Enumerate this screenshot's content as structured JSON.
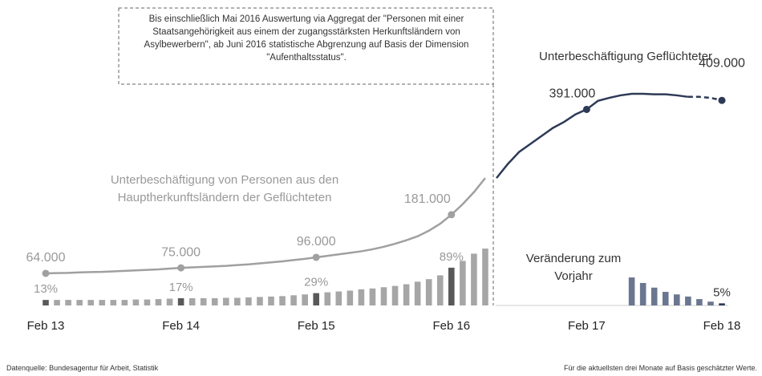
{
  "chart_data": {
    "type": "line_bar",
    "annotation": "Bis einschließlich Mai 2016 Auswertung via Aggregat der \"Personen mit einer Staatsangehörigkeit aus einem der zugangsstärksten Herkunftsländern von Asylbewerbern\", ab Juni 2016 statistische Abgrenzung auf Basis der Dimension \"Aufenthaltsstatus\".",
    "categories": [
      "Feb 13",
      null,
      null,
      null,
      null,
      null,
      null,
      null,
      null,
      null,
      null,
      null,
      "Feb 14",
      null,
      null,
      null,
      null,
      null,
      null,
      null,
      null,
      null,
      null,
      null,
      "Feb 15",
      null,
      null,
      null,
      null,
      null,
      null,
      null,
      null,
      null,
      null,
      null,
      "Feb 16",
      null,
      null,
      null,
      null,
      null,
      null,
      null,
      null,
      null,
      null,
      null,
      "Feb 17",
      null,
      null,
      null,
      null,
      null,
      null,
      null,
      null,
      null,
      null,
      null,
      "Feb 18"
    ],
    "ylim": [
      0,
      550000
    ],
    "y2lim": [
      0,
      650
    ],
    "series": [
      {
        "name": "Unterbeschäftigung von Personen aus den Hauptherkunftsländern der Geflüchteten",
        "color": "#a0a0a0",
        "values": [
          64000,
          64500,
          65000,
          66000,
          66500,
          67000,
          68000,
          69000,
          70000,
          71000,
          72000,
          73500,
          75000,
          76000,
          77000,
          78000,
          79000,
          80500,
          82000,
          84000,
          86000,
          88000,
          90500,
          93000,
          96000,
          99000,
          102000,
          105000,
          108000,
          112000,
          117000,
          123000,
          130000,
          138000,
          149000,
          163000,
          181000,
          202000,
          226000,
          254000,
          null,
          null,
          null,
          null,
          null,
          null,
          null,
          null,
          null,
          null,
          null,
          null,
          null,
          null,
          null,
          null,
          null,
          null,
          null,
          null,
          null
        ],
        "value_labels": [
          "64.000",
          null,
          null,
          null,
          null,
          null,
          null,
          null,
          null,
          null,
          null,
          null,
          "75.000",
          null,
          null,
          null,
          null,
          null,
          null,
          null,
          null,
          null,
          null,
          null,
          "96.000",
          null,
          null,
          null,
          null,
          null,
          null,
          null,
          null,
          null,
          null,
          null,
          "181.000",
          null,
          null,
          null,
          null,
          null,
          null,
          null,
          null,
          null,
          null,
          null,
          null,
          null,
          null,
          null,
          null,
          null,
          null,
          null,
          null,
          null,
          null,
          null,
          null
        ]
      },
      {
        "name": "Unterbeschäftigung Geflüchteter",
        "color": "#2d3a56",
        "dashed_last": 3,
        "values": [
          null,
          null,
          null,
          null,
          null,
          null,
          null,
          null,
          null,
          null,
          null,
          null,
          null,
          null,
          null,
          null,
          null,
          null,
          null,
          null,
          null,
          null,
          null,
          null,
          null,
          null,
          null,
          null,
          null,
          null,
          null,
          null,
          null,
          null,
          null,
          null,
          null,
          null,
          null,
          null,
          254000,
          282000,
          306000,
          322000,
          338000,
          354000,
          366000,
          381000,
          391000,
          408000,
          414000,
          419000,
          422000,
          422000,
          421000,
          421000,
          419000,
          416000,
          416000,
          414000,
          409000
        ],
        "value_labels": [
          null,
          null,
          null,
          null,
          null,
          null,
          null,
          null,
          null,
          null,
          null,
          null,
          null,
          null,
          null,
          null,
          null,
          null,
          null,
          null,
          null,
          null,
          null,
          null,
          null,
          null,
          null,
          null,
          null,
          null,
          null,
          null,
          null,
          null,
          null,
          null,
          null,
          null,
          null,
          null,
          null,
          null,
          null,
          null,
          null,
          null,
          null,
          null,
          "391.000",
          null,
          null,
          null,
          null,
          null,
          null,
          null,
          null,
          null,
          null,
          null,
          "409.000"
        ]
      },
      {
        "name": "Veränderung zum Vorjahr",
        "kind": "bar",
        "axis": "y2",
        "color": "#6b7690",
        "highlight_color": "#2d3a56",
        "values": [
          null,
          null,
          null,
          null,
          null,
          null,
          null,
          null,
          null,
          null,
          null,
          null,
          null,
          null,
          null,
          null,
          null,
          null,
          null,
          null,
          null,
          null,
          null,
          null,
          null,
          null,
          null,
          null,
          null,
          null,
          null,
          null,
          null,
          null,
          null,
          null,
          null,
          null,
          null,
          null,
          null,
          null,
          null,
          null,
          null,
          null,
          null,
          null,
          null,
          null,
          null,
          null,
          66,
          53,
          42,
          32,
          26,
          21,
          15,
          9,
          5
        ],
        "value_labels": [
          null,
          null,
          null,
          null,
          null,
          null,
          null,
          null,
          null,
          null,
          null,
          null,
          null,
          null,
          null,
          null,
          null,
          null,
          null,
          null,
          null,
          null,
          null,
          null,
          null,
          null,
          null,
          null,
          null,
          null,
          null,
          null,
          null,
          null,
          null,
          null,
          null,
          null,
          null,
          null,
          null,
          null,
          null,
          null,
          null,
          null,
          null,
          null,
          null,
          null,
          null,
          null,
          null,
          null,
          null,
          null,
          null,
          null,
          null,
          null,
          "5%"
        ]
      },
      {
        "kind": "bar",
        "axis": "y2",
        "color": "#a6a6a6",
        "highlight_color": "#595959",
        "values": [
          13,
          13,
          13,
          13,
          13,
          13,
          13,
          13,
          14,
          14,
          15,
          16,
          17,
          17,
          17,
          17,
          18,
          18,
          19,
          20,
          21,
          22,
          24,
          26,
          29,
          31,
          33,
          35,
          38,
          40,
          43,
          46,
          50,
          56,
          62,
          71,
          89,
          105,
          122,
          134,
          null,
          null,
          null,
          null,
          null,
          null,
          null,
          null,
          null,
          null,
          null,
          null,
          null,
          null,
          null,
          null,
          null,
          null,
          null,
          null,
          null
        ],
        "value_labels": [
          "13%",
          null,
          null,
          null,
          null,
          null,
          null,
          null,
          null,
          null,
          null,
          null,
          "17%",
          null,
          null,
          null,
          null,
          null,
          null,
          null,
          null,
          null,
          null,
          null,
          "29%",
          null,
          null,
          null,
          null,
          null,
          null,
          null,
          null,
          null,
          null,
          null,
          "89%",
          null,
          null,
          null,
          null,
          null,
          null,
          null,
          null,
          null,
          null,
          null,
          null,
          null,
          null,
          null,
          null,
          null,
          null,
          null,
          null,
          null,
          null,
          null,
          null
        ]
      }
    ],
    "source_label": "Datenquelle:",
    "source": "Bundesagentur für Arbeit, Statistik",
    "note": "Für die aktuellsten drei Monate auf Basis geschätzter Werte."
  }
}
